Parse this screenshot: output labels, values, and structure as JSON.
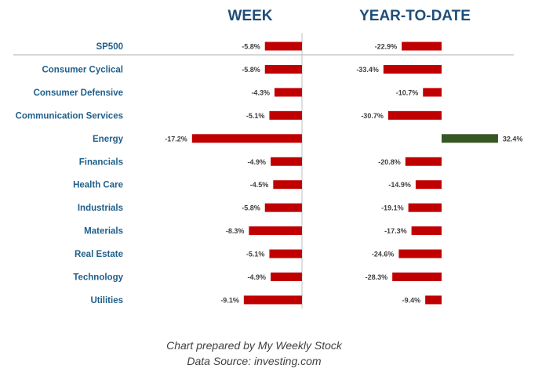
{
  "chart_data": {
    "type": "bar",
    "orientation": "horizontal",
    "categories": [
      "SP500",
      "Consumer Cyclical",
      "Consumer Defensive",
      "Communication Services",
      "Energy",
      "Financials",
      "Health Care",
      "Industrials",
      "Materials",
      "Real Estate",
      "Technology",
      "Utilities"
    ],
    "series": [
      {
        "name": "WEEK",
        "values": [
          -5.8,
          -5.8,
          -4.3,
          -5.1,
          -17.2,
          -4.9,
          -4.5,
          -5.8,
          -8.3,
          -5.1,
          -4.9,
          -9.1
        ],
        "labels": [
          "-5.8%",
          "-5.8%",
          "-4.3%",
          "-5.1%",
          "-17.2%",
          "-4.9%",
          "-4.5%",
          "-5.8%",
          "-8.3%",
          "-5.1%",
          "-4.9%",
          "-9.1%"
        ]
      },
      {
        "name": "YEAR-TO-DATE",
        "values": [
          -22.9,
          -33.4,
          -10.7,
          -30.7,
          32.4,
          -20.8,
          -14.9,
          -19.1,
          -17.3,
          -24.6,
          -28.3,
          -9.4
        ],
        "labels": [
          "-22.9%",
          "-33.4%",
          "-10.7%",
          "-30.7%",
          "32.4%",
          "-20.8%",
          "-14.9%",
          "-19.1%",
          "-17.3%",
          "-24.6%",
          "-28.3%",
          "-9.4%"
        ]
      }
    ],
    "colors": {
      "negative": "#c00000",
      "positive": "#375623",
      "header": "#1f4e79",
      "category": "#1f5f8b",
      "axis": "#bfbfbf"
    },
    "grid": false,
    "legend": "none"
  },
  "footer": {
    "line1": "Chart prepared by My Weekly Stock",
    "line2": "Data Source: investing.com"
  }
}
